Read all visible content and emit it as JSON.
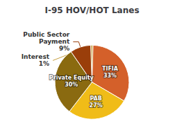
{
  "chart_data": {
    "type": "pie",
    "title": "I-95 HOV/HOT Lanes",
    "categories": [
      "Interest",
      "TIFIA",
      "PAB",
      "Private Equity",
      "Public Sector\nPayment"
    ],
    "values": [
      1,
      33,
      27,
      30,
      9
    ],
    "value_labels": [
      "1%",
      "33%",
      "27%",
      "30%",
      "9%"
    ],
    "colors": [
      "#c8a040",
      "#d4602a",
      "#f0bc18",
      "#8a6a10",
      "#9a3e0a"
    ],
    "data_labels": true
  }
}
